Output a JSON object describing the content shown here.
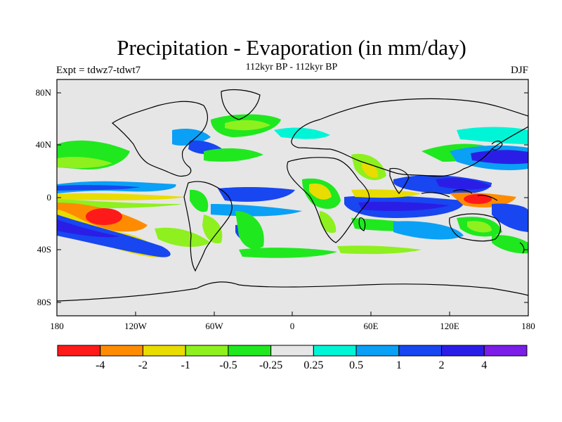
{
  "header": {
    "title": "Precipitation - Evaporation (in mm/day)",
    "subtitle": "112kyr BP - 112kyr BP",
    "left_label": "Expt = tdwz7-tdwt7",
    "right_label": "DJF"
  },
  "map": {
    "lat_ticks": [
      "80N",
      "40N",
      "0",
      "40S",
      "80S"
    ],
    "lon_ticks": [
      "180",
      "120W",
      "60W",
      "0",
      "60E",
      "120E",
      "180"
    ]
  },
  "colorbar": {
    "colors": [
      "#ff1a1a",
      "#ff8c00",
      "#e8dc00",
      "#8ef01e",
      "#1fe81f",
      "#e6e6e6",
      "#00f5d6",
      "#0aa0f5",
      "#1846f0",
      "#2a1ee6",
      "#7a1ee8"
    ],
    "labels": [
      "-4",
      "-2",
      "-1",
      "-0.5",
      "-0.25",
      "0.25",
      "0.5",
      "1",
      "2",
      "4"
    ]
  }
}
